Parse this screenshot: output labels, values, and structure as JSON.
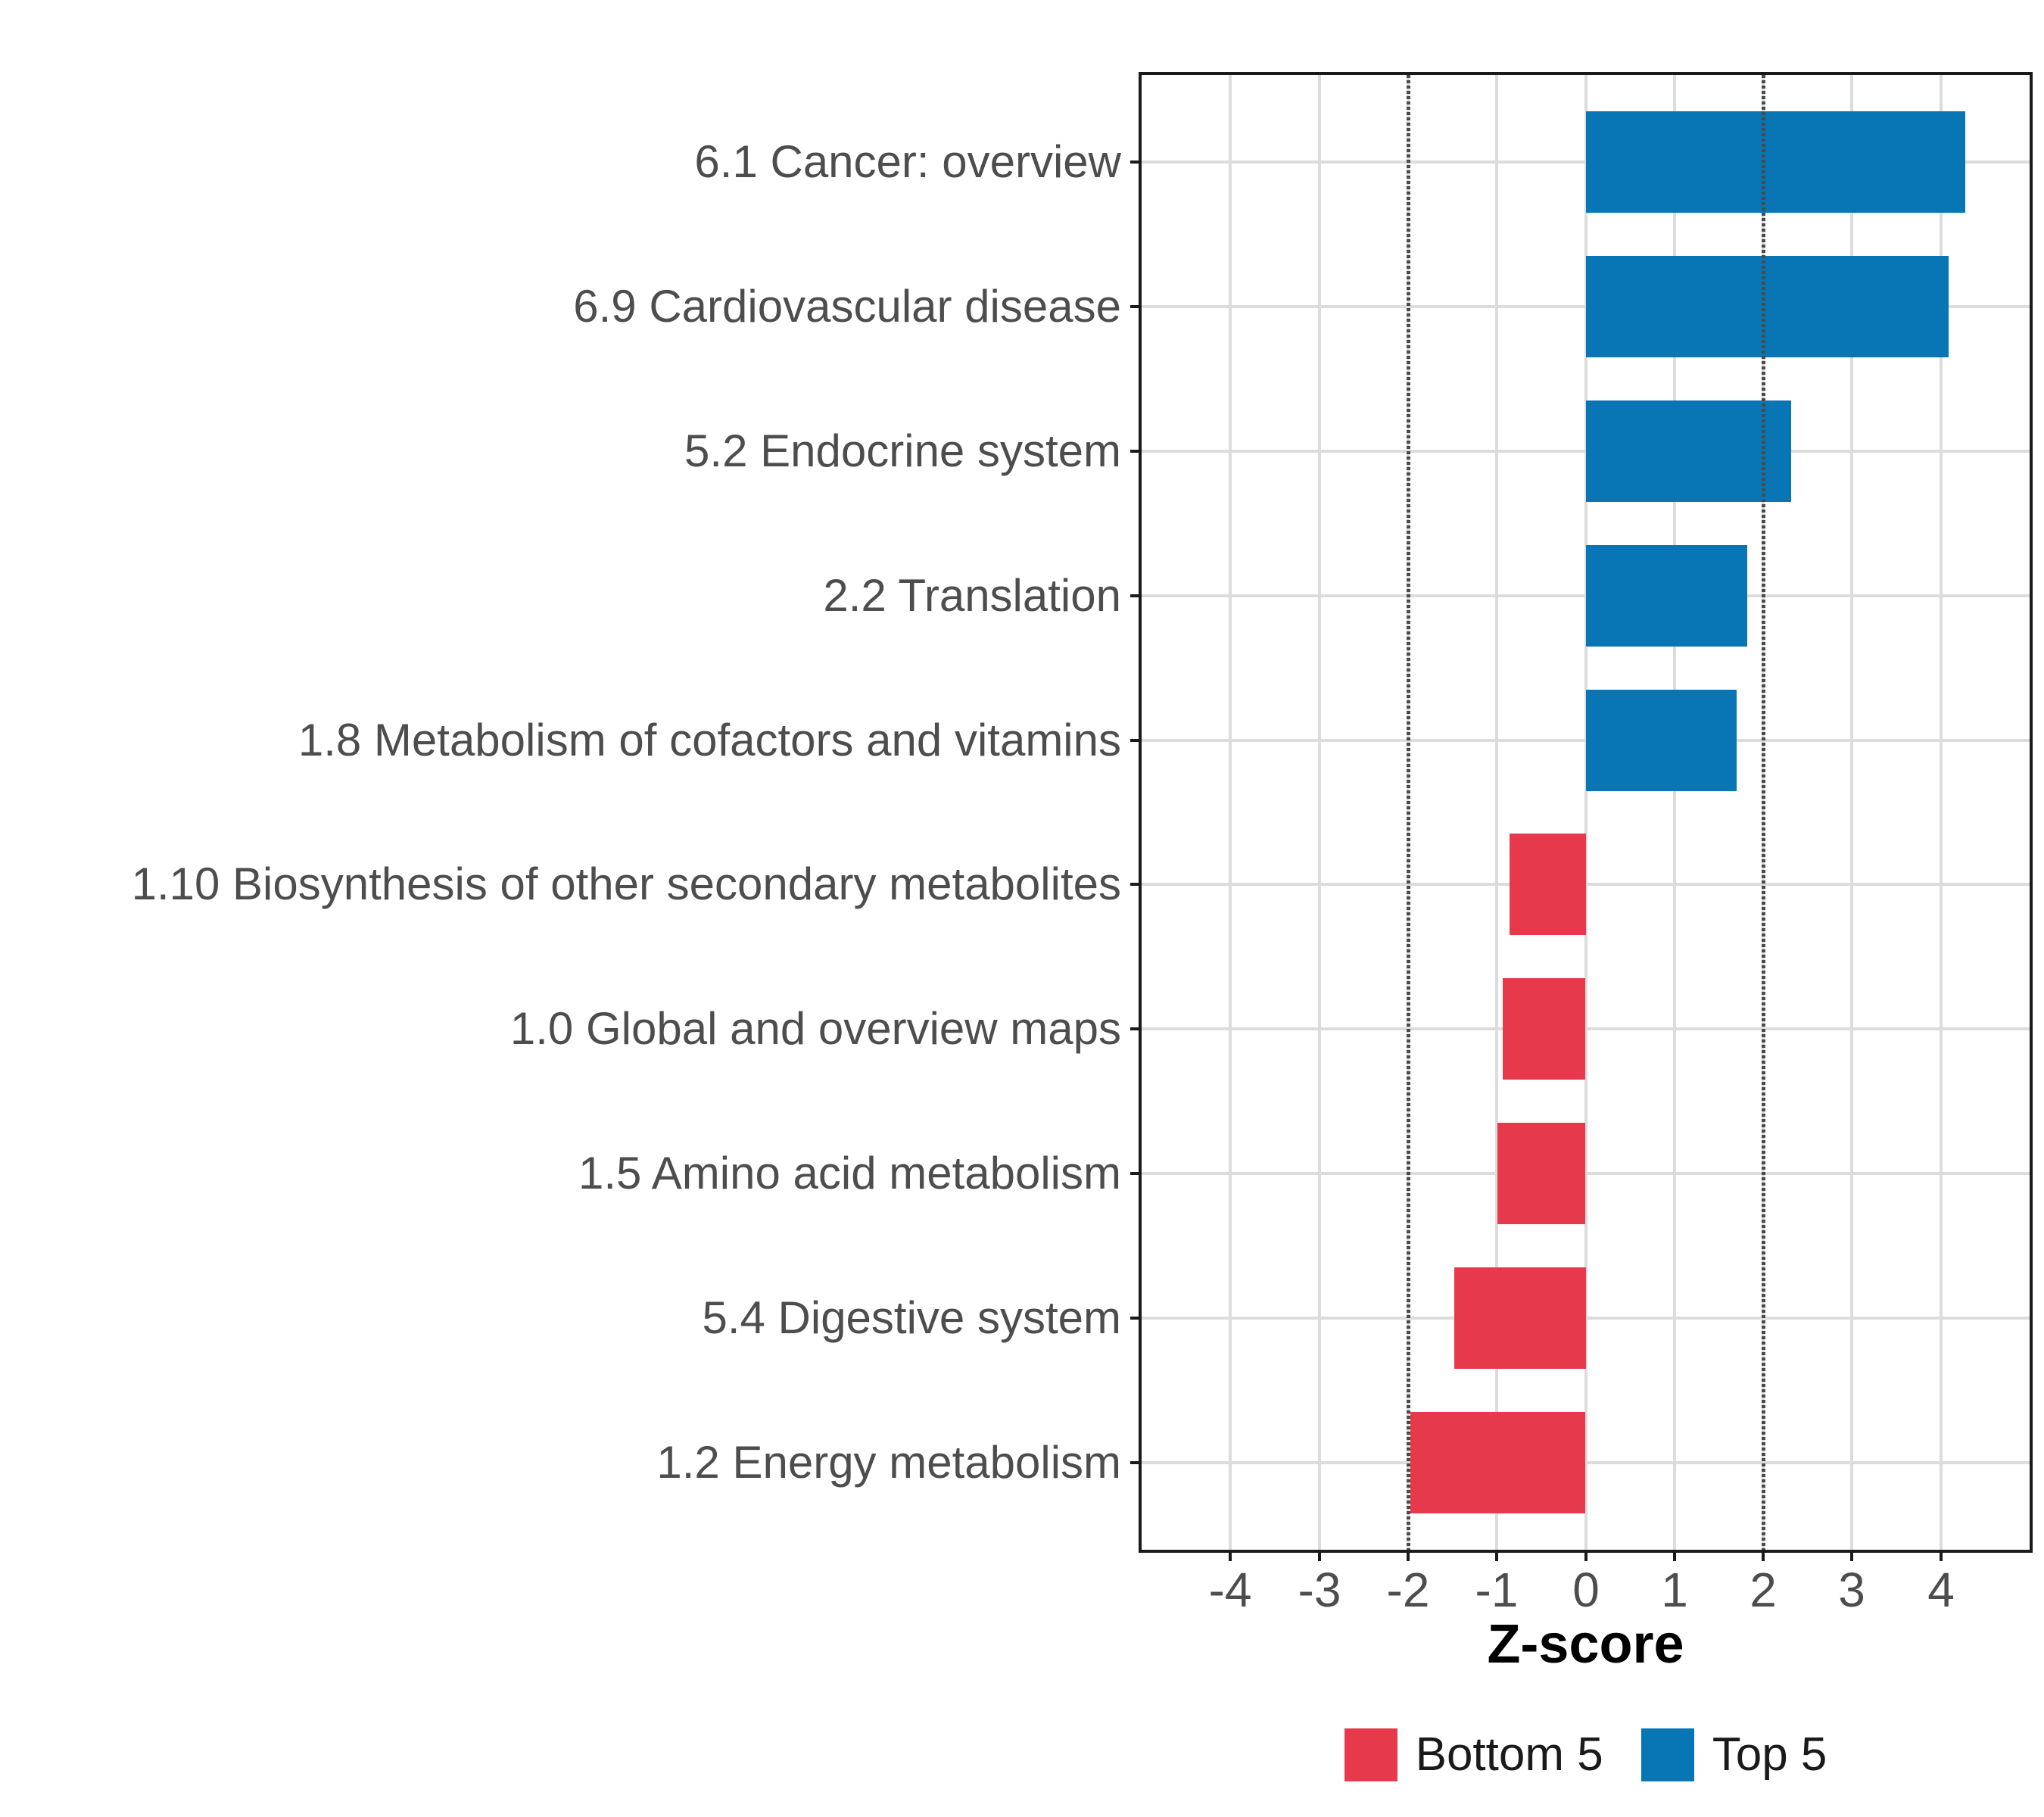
{
  "chart_data": {
    "type": "bar",
    "orientation": "horizontal",
    "title": "",
    "xlabel": "Z-score",
    "categories": [
      "6.1 Cancer: overview",
      "6.9 Cardiovascular disease",
      "5.2 Endocrine system",
      "2.2 Translation",
      "1.8 Metabolism of cofactors and vitamins",
      "1.10 Biosynthesis of other secondary metabolites",
      "1.0 Global and overview maps",
      "1.5 Amino acid metabolism",
      "5.4 Digestive system",
      "1.2 Energy metabolism"
    ],
    "values": [
      4.27,
      4.08,
      2.31,
      1.82,
      1.7,
      -0.86,
      -0.93,
      -0.99,
      -1.48,
      -1.97
    ],
    "groups": [
      "Top 5",
      "Top 5",
      "Top 5",
      "Top 5",
      "Top 5",
      "Bottom 5",
      "Bottom 5",
      "Bottom 5",
      "Bottom 5",
      "Bottom 5"
    ],
    "x_ticks": [
      -4,
      -3,
      -2,
      -1,
      0,
      1,
      2,
      3,
      4
    ],
    "x_tick_labels": [
      "-4",
      "-3",
      "-2",
      "-1",
      "0",
      "1",
      "2",
      "3",
      "4"
    ],
    "xlim": [
      -5,
      5
    ],
    "reference_lines_x": [
      -2,
      2
    ],
    "grid": true,
    "legend_position": "bottom",
    "legend": {
      "entries": [
        {
          "label": "Bottom 5",
          "color": "#E63A4C"
        },
        {
          "label": "Top 5",
          "color": "#0876B4"
        }
      ]
    }
  }
}
